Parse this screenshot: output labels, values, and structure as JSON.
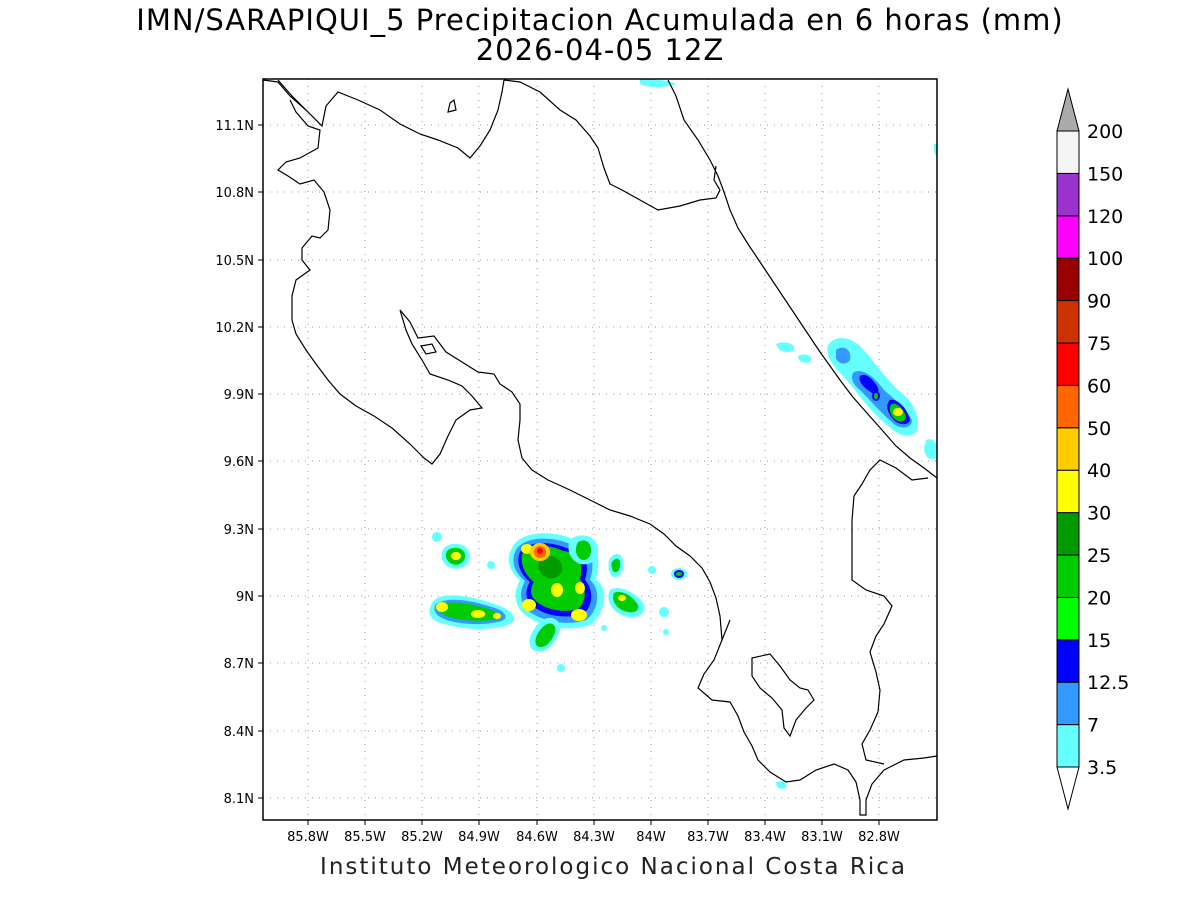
{
  "title": {
    "line1": "IMN/SARAPIQUI_5 Precipitacion Acumulada en 6 horas (mm)",
    "line2": "2026-04-05 12Z"
  },
  "footer": "Instituto Meteorologico Nacional Costa Rica",
  "map": {
    "lon_range": [
      -86.0,
      -83.2
    ],
    "lat_range": [
      8.0,
      11.3
    ],
    "lon_ticks": [
      "85.8W",
      "85.5W",
      "85.2W",
      "84.9W",
      "84.6W",
      "84.3W",
      "84W",
      "83.7W",
      "83.4W",
      "83.1W",
      "82.8W"
    ],
    "lat_ticks": [
      "11.1N",
      "10.8N",
      "10.5N",
      "10.2N",
      "9.9N",
      "9.6N",
      "9.3N",
      "9N",
      "8.7N",
      "8.4N",
      "8.1N"
    ],
    "grid": "dotted"
  },
  "colorbar": {
    "levels": [
      "3.5",
      "7",
      "12.5",
      "15",
      "20",
      "25",
      "30",
      "40",
      "50",
      "60",
      "75",
      "90",
      "100",
      "120",
      "150",
      "200"
    ],
    "colors": [
      "#66ffff",
      "#3399ff",
      "#0000ff",
      "#00ff00",
      "#00cc00",
      "#009900",
      "#ffff00",
      "#ffcc00",
      "#ff6600",
      "#ff0000",
      "#cc3300",
      "#990000",
      "#ff00ff",
      "#9933cc",
      "#f5f5f5",
      "#aaaaaa"
    ]
  }
}
